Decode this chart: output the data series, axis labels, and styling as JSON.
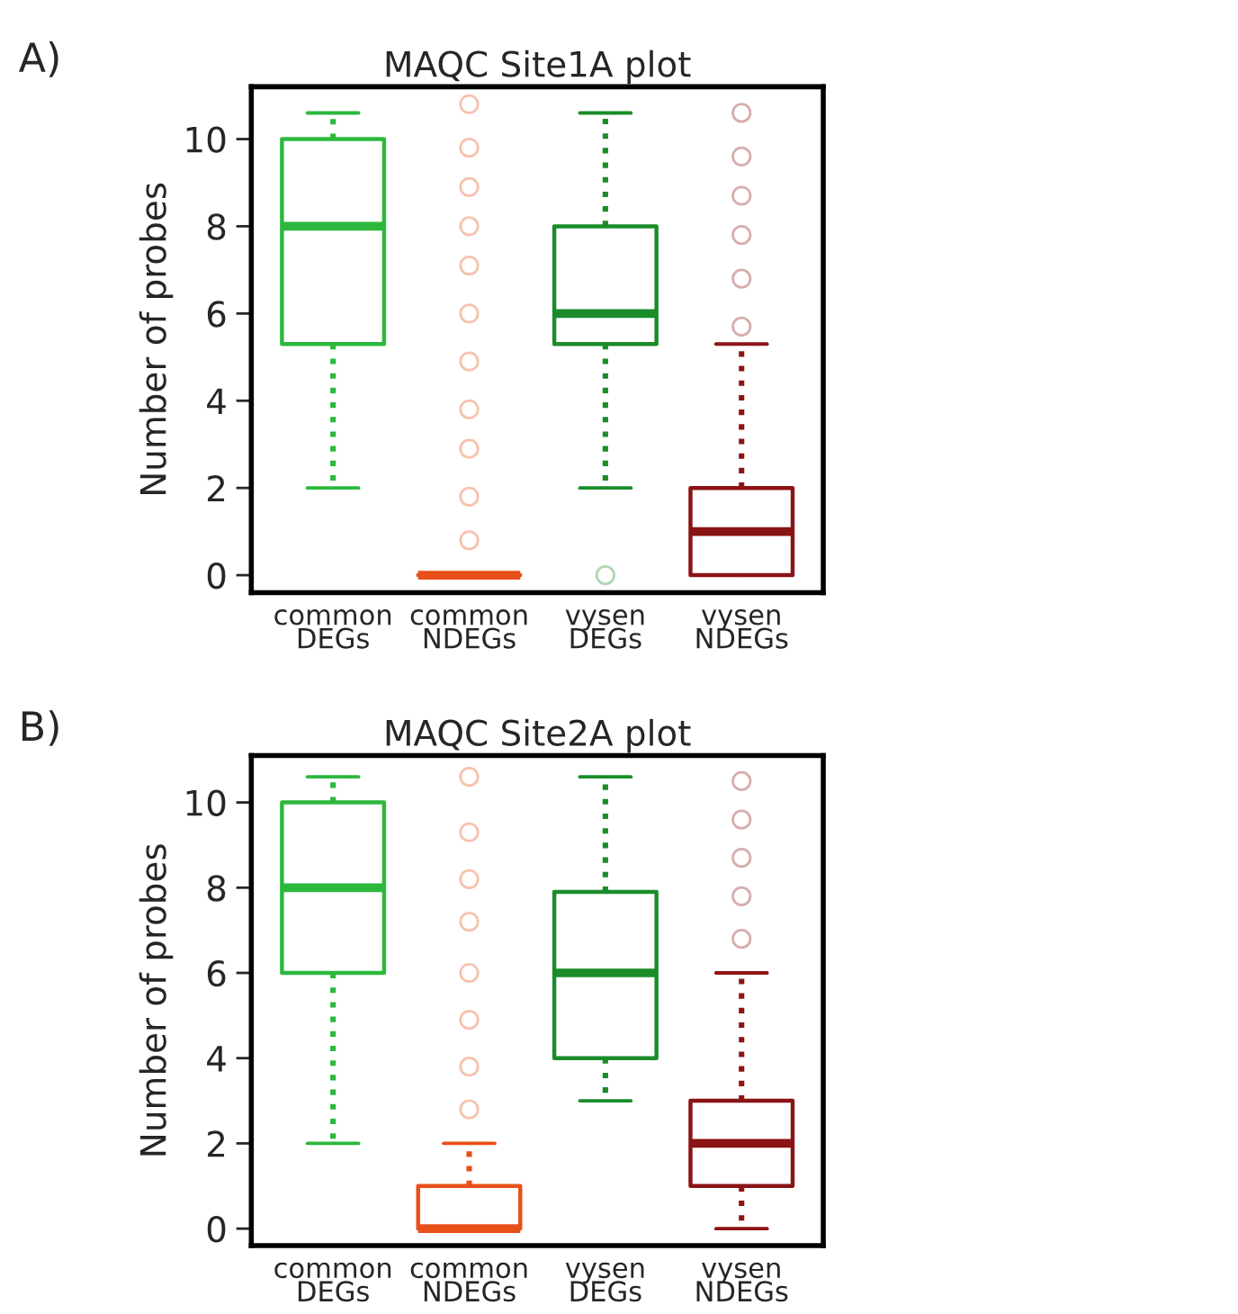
{
  "chart_data": [
    {
      "type": "box",
      "title": "MAQC Site1A plot",
      "ylabel": "Number of probes",
      "annotations": [
        "A)"
      ],
      "categories": [
        "common\nDEGs",
        "common\nNDEGs",
        "vysen\nDEGs",
        "vysen\nNDEGs"
      ],
      "colors": [
        "#2db83d",
        "#e8501a",
        "#1a8c2a",
        "#8b1414"
      ],
      "boxes": [
        {
          "low": 2,
          "q1": 5.3,
          "median": 8,
          "q3": 10,
          "high": 10.6
        },
        {
          "low": 0,
          "q1": 0,
          "median": 0,
          "q3": 0,
          "high": 0,
          "outliers": [
            0.8,
            1.8,
            2.9,
            3.8,
            4.9,
            6.0,
            7.1,
            8.0,
            8.9,
            9.8,
            10.8
          ]
        },
        {
          "low": 2,
          "q1": 5.3,
          "median": 6,
          "q3": 8,
          "high": 10.6,
          "outliers": [
            0
          ]
        },
        {
          "low": 0,
          "q1": 0,
          "median": 1,
          "q3": 2,
          "high": 5.3,
          "outliers": [
            5.7,
            6.8,
            7.8,
            8.7,
            9.6,
            10.6
          ]
        }
      ],
      "ylim": [
        -0.4,
        11.2
      ],
      "yticks": [
        0,
        2,
        4,
        6,
        8,
        10
      ],
      "grid": false
    },
    {
      "type": "box",
      "title": "MAQC Site2A plot",
      "ylabel": "Number of probes",
      "annotations": [
        "B)"
      ],
      "categories": [
        "common\nDEGs",
        "common\nNDEGs",
        "vysen\nDEGs",
        "vysen\nNDEGs"
      ],
      "colors": [
        "#2db83d",
        "#e8501a",
        "#1a8c2a",
        "#8b1414"
      ],
      "boxes": [
        {
          "low": 2,
          "q1": 6,
          "median": 8,
          "q3": 10,
          "high": 10.6
        },
        {
          "low": 0,
          "q1": 0,
          "median": 0,
          "q3": 1,
          "high": 2,
          "outliers": [
            2.8,
            3.8,
            4.9,
            6.0,
            7.2,
            8.2,
            9.3,
            10.6
          ]
        },
        {
          "low": 3,
          "q1": 4,
          "median": 6,
          "q3": 7.9,
          "high": 10.6
        },
        {
          "low": 0,
          "q1": 1,
          "median": 2,
          "q3": 3,
          "high": 6,
          "outliers": [
            6.8,
            7.8,
            8.7,
            9.6,
            10.5
          ]
        }
      ],
      "ylim": [
        -0.4,
        11.1
      ],
      "yticks": [
        0,
        2,
        4,
        6,
        8,
        10
      ],
      "grid": false
    }
  ]
}
